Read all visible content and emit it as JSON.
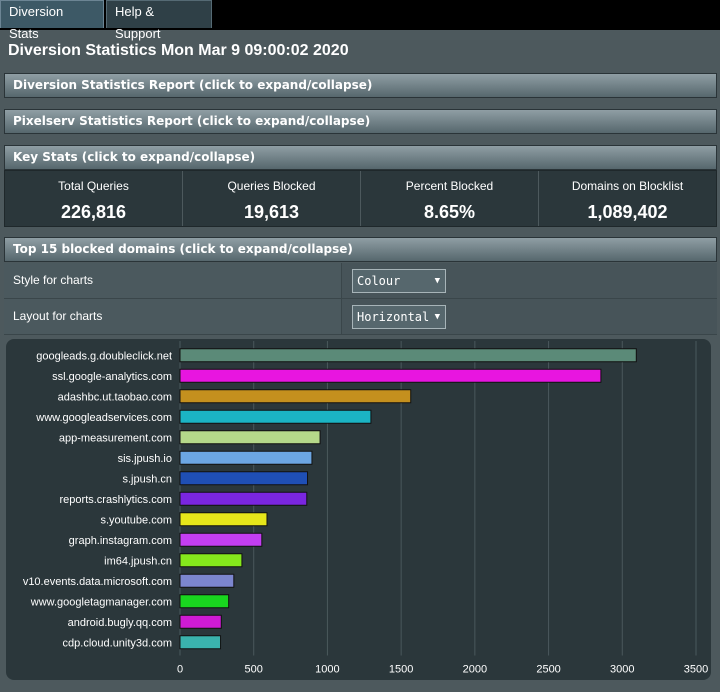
{
  "tabs": [
    {
      "label": "Diversion Stats",
      "active": true
    },
    {
      "label": "Help & Support",
      "active": false
    }
  ],
  "page_title": "Diversion Statistics Mon Mar 9 09:00:02 2020",
  "sections": {
    "report": "Diversion Statistics Report (click to expand/collapse)",
    "pixelserv": "Pixelserv Statistics Report (click to expand/collapse)",
    "keystats": "Key Stats (click to expand/collapse)",
    "top15": "Top 15 blocked domains (click to expand/collapse)"
  },
  "key_stats": [
    {
      "label": "Total Queries",
      "value": "226,816"
    },
    {
      "label": "Queries Blocked",
      "value": "19,613"
    },
    {
      "label": "Percent Blocked",
      "value": "8.65%"
    },
    {
      "label": "Domains on Blocklist",
      "value": "1,089,402"
    }
  ],
  "settings": {
    "style_label": "Style for charts",
    "style_value": "Colour",
    "layout_label": "Layout for charts",
    "layout_value": "Horizontal"
  },
  "chart_data": {
    "type": "bar",
    "orientation": "horizontal",
    "categories": [
      "googleads.g.doubleclick.net",
      "ssl.google-analytics.com",
      "adashbc.ut.taobao.com",
      "www.googleadservices.com",
      "app-measurement.com",
      "sis.jpush.io",
      "s.jpush.cn",
      "reports.crashlytics.com",
      "s.youtube.com",
      "graph.instagram.com",
      "im64.jpush.cn",
      "v10.events.data.microsoft.com",
      "www.googletagmanager.com",
      "android.bugly.qq.com",
      "cdp.cloud.unity3d.com"
    ],
    "values": [
      3095,
      2855,
      1565,
      1295,
      950,
      895,
      865,
      860,
      590,
      555,
      420,
      365,
      330,
      280,
      275
    ],
    "colors": [
      "#5b8a78",
      "#e815e0",
      "#c4901e",
      "#1bb4c4",
      "#b5d98a",
      "#6ca6e3",
      "#1f4fb5",
      "#7a26e0",
      "#e6e61a",
      "#c33ef2",
      "#85e81c",
      "#7c86cf",
      "#19d61f",
      "#cf1bd4",
      "#3ab3ad"
    ],
    "xlim": [
      0,
      3500
    ],
    "xticks": [
      0,
      500,
      1000,
      1500,
      2000,
      2500,
      3000,
      3500
    ],
    "grid": true
  }
}
